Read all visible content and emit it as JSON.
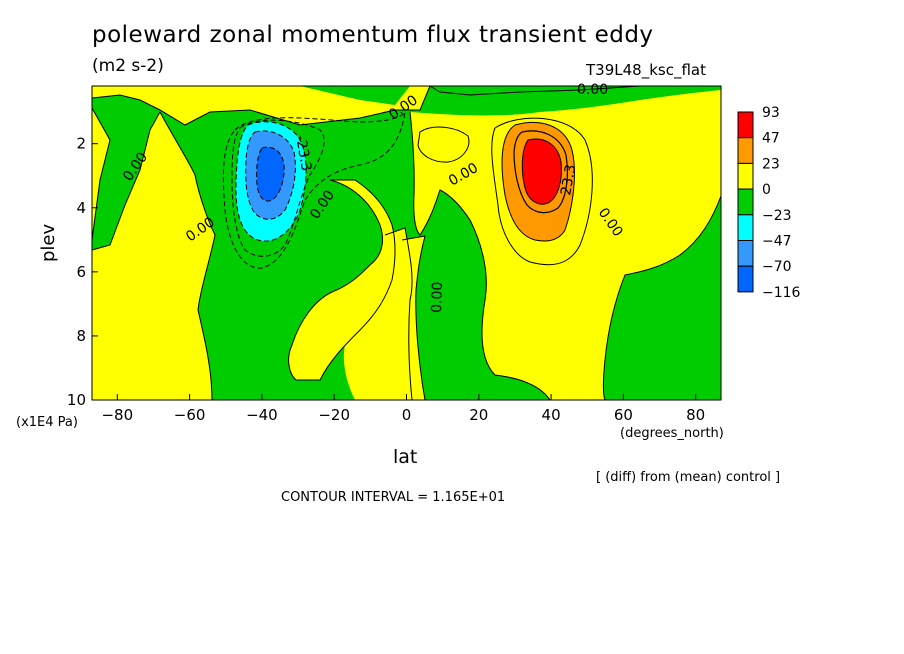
{
  "chart_data": {
    "type": "contour",
    "title": "poleward zonal momentum flux transient eddy",
    "units": "(m2 s-2)",
    "run_name": "T39L48_ksc_flat",
    "xlabel": "lat",
    "ylabel": "plev",
    "x_units": "(degrees_north)",
    "y_units": "(x1E4 Pa)",
    "xlim": [
      -87,
      87
    ],
    "ylim": [
      10,
      0.2
    ],
    "x_ticks": [
      -80,
      -60,
      -40,
      -20,
      0,
      20,
      40,
      60,
      80
    ],
    "y_ticks": [
      2,
      4,
      6,
      8,
      10
    ],
    "note": "[ (diff) from (mean) control ]",
    "contour_interval": "CONTOUR INTERVAL = 1.165E+01",
    "legend": {
      "levels": [
        "93",
        "47",
        "23",
        "0",
        "-23",
        "-47",
        "-70",
        "-116"
      ],
      "colors": [
        "#ff0000",
        "#ff9900",
        "#ffff00",
        "#00cc00",
        "#00ffff",
        "#3399ff",
        "#0066ff"
      ]
    },
    "contour_labels": [
      "0.00",
      "0.00",
      "0.00",
      "0.00",
      "0.00",
      "0.00",
      "0.00",
      "0.00",
      "-23.3",
      "23.3"
    ],
    "features": [
      {
        "kind": "negative_extremum",
        "lat": -38,
        "plev": 2.7,
        "approx_value": -70
      },
      {
        "kind": "positive_extremum",
        "lat": 37,
        "plev": 2.8,
        "approx_value": 93
      }
    ],
    "colors": {
      "positive_fill": "#ffff00",
      "negative_fill": "#00cc00"
    }
  }
}
